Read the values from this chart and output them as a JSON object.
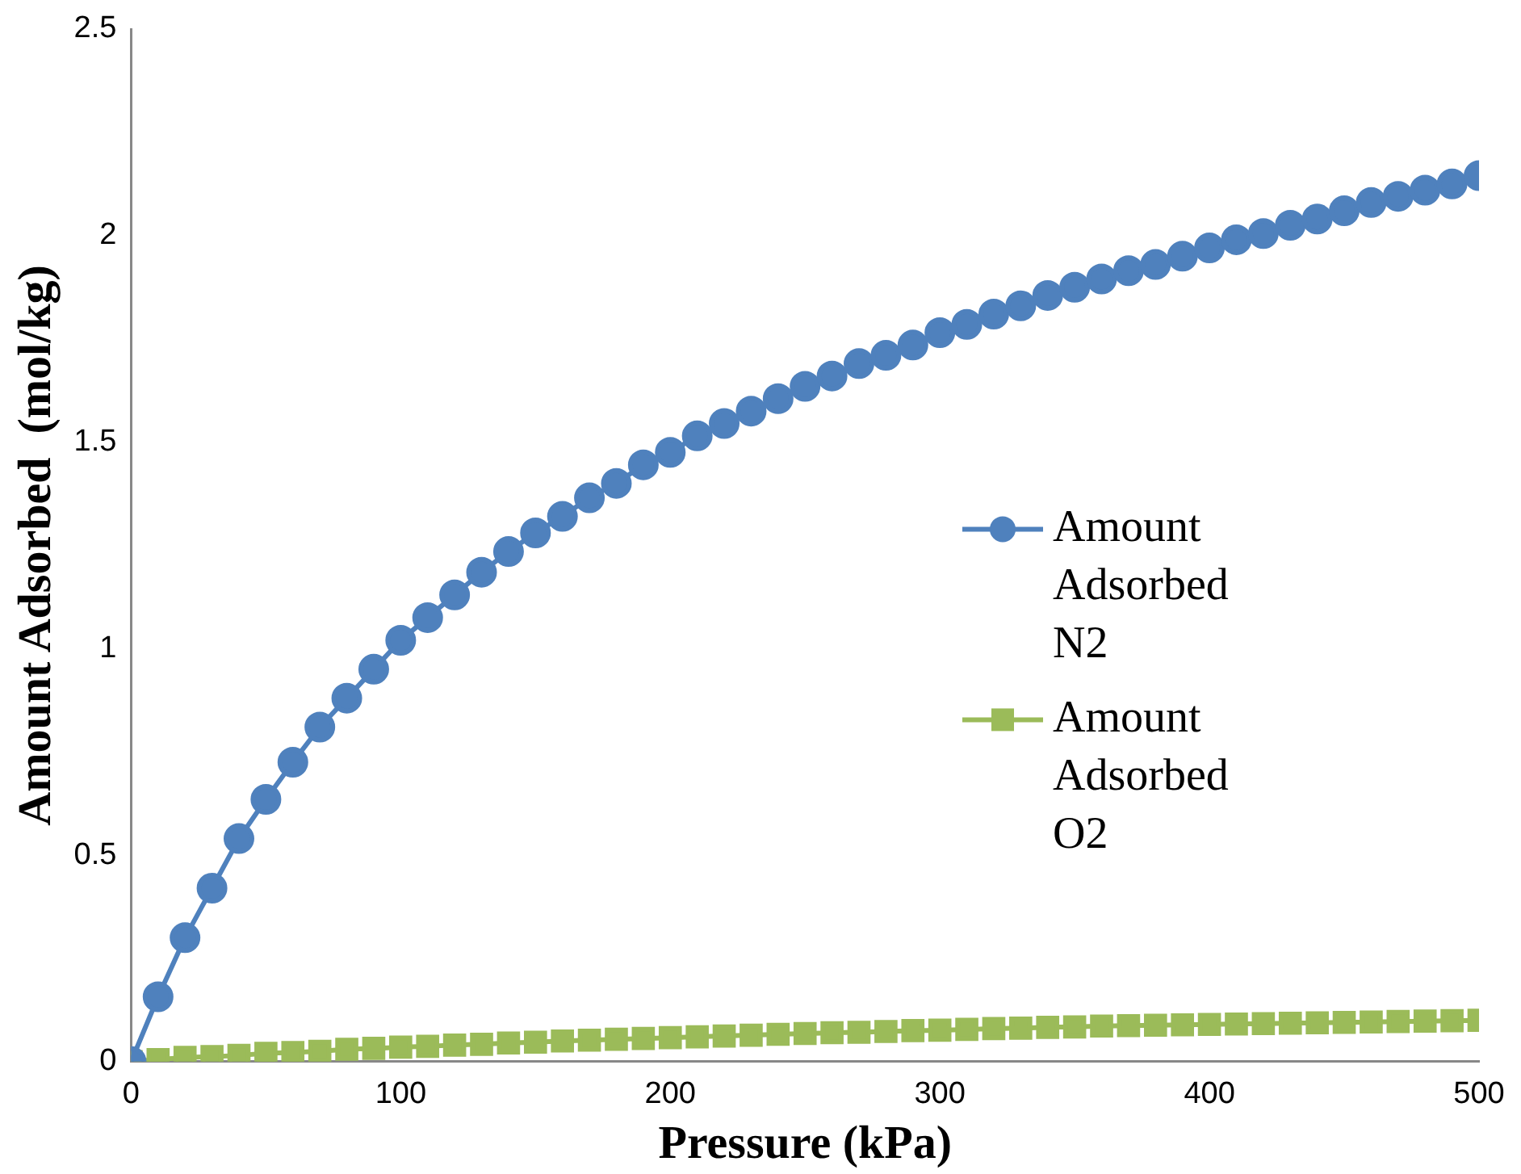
{
  "chart_data": {
    "type": "line",
    "xlabel": "Pressure (kPa)",
    "ylabel": "Amount Adsorbed  (mol/kg)",
    "x": [
      0,
      10,
      20,
      30,
      40,
      50,
      60,
      70,
      80,
      90,
      100,
      110,
      120,
      130,
      140,
      150,
      160,
      170,
      180,
      190,
      200,
      210,
      220,
      230,
      240,
      250,
      260,
      270,
      280,
      290,
      300,
      310,
      320,
      330,
      340,
      350,
      360,
      370,
      380,
      390,
      400,
      410,
      420,
      430,
      440,
      450,
      460,
      470,
      480,
      490,
      500
    ],
    "series": [
      {
        "name": "Amount Adsorbed N2",
        "color": "#4f81bd",
        "marker": "circle",
        "values": [
          0,
          0.157,
          0.3,
          0.42,
          0.54,
          0.635,
          0.725,
          0.81,
          0.88,
          0.95,
          1.02,
          1.075,
          1.13,
          1.185,
          1.235,
          1.28,
          1.32,
          1.365,
          1.4,
          1.445,
          1.475,
          1.515,
          1.545,
          1.575,
          1.605,
          1.635,
          1.66,
          1.69,
          1.71,
          1.735,
          1.765,
          1.785,
          1.81,
          1.83,
          1.855,
          1.875,
          1.895,
          1.915,
          1.93,
          1.95,
          1.97,
          1.99,
          2.005,
          2.025,
          2.04,
          2.06,
          2.08,
          2.095,
          2.11,
          2.125,
          2.145
        ]
      },
      {
        "name": "Amount Adsorbed O2",
        "color": "#9bbb59",
        "marker": "square",
        "values": [
          0,
          0.005,
          0.01,
          0.012,
          0.015,
          0.02,
          0.022,
          0.025,
          0.03,
          0.032,
          0.035,
          0.037,
          0.04,
          0.042,
          0.045,
          0.047,
          0.05,
          0.052,
          0.054,
          0.056,
          0.058,
          0.06,
          0.062,
          0.064,
          0.066,
          0.068,
          0.07,
          0.071,
          0.073,
          0.075,
          0.076,
          0.078,
          0.08,
          0.081,
          0.083,
          0.084,
          0.086,
          0.087,
          0.088,
          0.089,
          0.09,
          0.091,
          0.092,
          0.093,
          0.094,
          0.095,
          0.096,
          0.097,
          0.098,
          0.099,
          0.1
        ]
      }
    ],
    "xlim": [
      0,
      500
    ],
    "xticks": [
      0,
      100,
      200,
      300,
      400,
      500
    ],
    "ylim": [
      0,
      2.5
    ],
    "yticks": [
      0,
      0.5,
      1,
      1.5,
      2,
      2.5
    ],
    "grid": false,
    "legend": "right",
    "line_style": "solid"
  }
}
